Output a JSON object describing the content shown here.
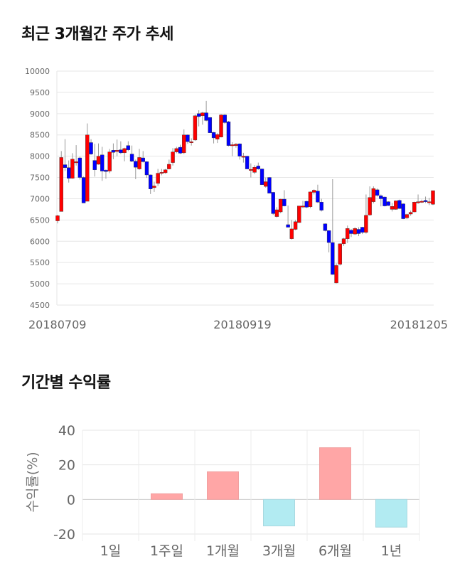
{
  "section1": {
    "title": "최근 3개월간 주가 추세"
  },
  "section2": {
    "title": "기간별 수익률"
  },
  "chart_data": [
    {
      "type": "candlestick",
      "ylim": [
        4500,
        10000
      ],
      "yticks": [
        10000,
        9500,
        9000,
        8500,
        8000,
        7500,
        7000,
        6500,
        6000,
        5500,
        5000,
        4500
      ],
      "xtick_labels": [
        "20180709",
        "20180919",
        "20181205"
      ],
      "grid": true,
      "colors": {
        "up": "#ff0000",
        "down": "#0000ff",
        "wick": "#999999"
      },
      "candles_ohlc": [
        [
          6480,
          6620,
          6420,
          6600
        ],
        [
          6700,
          8120,
          6700,
          7970
        ],
        [
          7800,
          8400,
          7650,
          7730
        ],
        [
          7730,
          7900,
          7380,
          7480
        ],
        [
          7480,
          8070,
          7470,
          7930
        ],
        [
          7870,
          8260,
          7780,
          7870
        ],
        [
          7960,
          7990,
          7450,
          7500
        ],
        [
          7500,
          7520,
          6900,
          6900
        ],
        [
          6940,
          8770,
          6940,
          8500
        ],
        [
          8320,
          8400,
          8030,
          8050
        ],
        [
          7900,
          8290,
          7520,
          7680
        ],
        [
          7810,
          8300,
          7800,
          8000
        ],
        [
          8030,
          8220,
          7420,
          7650
        ],
        [
          7670,
          7690,
          7470,
          7640
        ],
        [
          7650,
          8170,
          7600,
          8100
        ],
        [
          8140,
          8300,
          7930,
          8090
        ],
        [
          8110,
          8390,
          8000,
          8140
        ],
        [
          8150,
          8350,
          8050,
          8080
        ],
        [
          8080,
          8200,
          7880,
          8180
        ],
        [
          8250,
          8350,
          8120,
          8150
        ],
        [
          8050,
          8250,
          7860,
          7880
        ],
        [
          7880,
          7920,
          7460,
          7740
        ],
        [
          7700,
          8170,
          7680,
          7970
        ],
        [
          7960,
          8120,
          7850,
          7870
        ],
        [
          7870,
          7880,
          7490,
          7560
        ],
        [
          7560,
          7570,
          7110,
          7230
        ],
        [
          7260,
          7400,
          7160,
          7300
        ],
        [
          7360,
          7700,
          7300,
          7600
        ],
        [
          7620,
          7700,
          7550,
          7620
        ],
        [
          7610,
          7700,
          7590,
          7680
        ],
        [
          7700,
          7920,
          7690,
          7810
        ],
        [
          7850,
          8190,
          7780,
          8100
        ],
        [
          8100,
          8220,
          8070,
          8180
        ],
        [
          8210,
          8270,
          8050,
          8070
        ],
        [
          8080,
          8630,
          8050,
          8500
        ],
        [
          8500,
          8510,
          8290,
          8340
        ],
        [
          8340,
          8420,
          8250,
          8340
        ],
        [
          8380,
          8980,
          8360,
          8950
        ],
        [
          9000,
          9080,
          8700,
          8930
        ],
        [
          8950,
          9040,
          8740,
          9020
        ],
        [
          9020,
          9300,
          8820,
          8840
        ],
        [
          8910,
          8920,
          8550,
          8550
        ],
        [
          8560,
          8570,
          8300,
          8430
        ],
        [
          8400,
          8540,
          8310,
          8510
        ],
        [
          8450,
          8990,
          8440,
          8970
        ],
        [
          8970,
          8990,
          8760,
          8790
        ],
        [
          8810,
          8830,
          8230,
          8250
        ],
        [
          8270,
          8330,
          8000,
          8270
        ],
        [
          8250,
          8310,
          8200,
          8280
        ],
        [
          8290,
          8300,
          7920,
          8000
        ],
        [
          8000,
          8080,
          7850,
          8000
        ],
        [
          8000,
          8010,
          7700,
          7700
        ],
        [
          7690,
          7830,
          7500,
          7690
        ],
        [
          7620,
          7790,
          7580,
          7740
        ],
        [
          7770,
          7850,
          7680,
          7700
        ],
        [
          7700,
          7710,
          7330,
          7330
        ],
        [
          7290,
          7500,
          7260,
          7400
        ],
        [
          7500,
          7510,
          7130,
          7130
        ],
        [
          7150,
          7160,
          6620,
          6650
        ],
        [
          6580,
          6800,
          6560,
          6740
        ],
        [
          6690,
          7000,
          6660,
          6990
        ],
        [
          6990,
          7200,
          6820,
          6830
        ],
        [
          6390,
          6840,
          6330,
          6330
        ],
        [
          6060,
          6500,
          6040,
          6290
        ],
        [
          6280,
          6500,
          6260,
          6460
        ],
        [
          6440,
          6830,
          6430,
          6830
        ],
        [
          6830,
          6950,
          6780,
          6830
        ],
        [
          6940,
          6950,
          6780,
          6800
        ],
        [
          6810,
          7170,
          6780,
          7160
        ],
        [
          7150,
          7220,
          7100,
          7200
        ],
        [
          7180,
          7330,
          6900,
          6920
        ],
        [
          6920,
          7000,
          6700,
          6730
        ],
        [
          6410,
          6420,
          6230,
          6250
        ],
        [
          6250,
          6260,
          5740,
          5970
        ],
        [
          5970,
          7460,
          5210,
          5220
        ],
        [
          5020,
          5480,
          5010,
          5430
        ],
        [
          5460,
          5950,
          5430,
          5940
        ],
        [
          5940,
          6080,
          5890,
          6060
        ],
        [
          6060,
          6370,
          5960,
          6300
        ],
        [
          6260,
          6290,
          6100,
          6180
        ],
        [
          6170,
          6330,
          6150,
          6300
        ],
        [
          6280,
          6330,
          6120,
          6180
        ],
        [
          6330,
          6340,
          6170,
          6210
        ],
        [
          6210,
          7100,
          6180,
          6610
        ],
        [
          6620,
          7290,
          6600,
          7030
        ],
        [
          6930,
          7290,
          6890,
          7240
        ],
        [
          7210,
          7240,
          7050,
          7080
        ],
        [
          7070,
          7100,
          6820,
          7000
        ],
        [
          7040,
          7050,
          6820,
          6830
        ],
        [
          6930,
          6940,
          6830,
          6840
        ],
        [
          6750,
          6900,
          6700,
          6820
        ],
        [
          6750,
          6960,
          6740,
          6950
        ],
        [
          6960,
          6980,
          6760,
          6770
        ],
        [
          6880,
          6890,
          6520,
          6530
        ],
        [
          6550,
          6650,
          6520,
          6630
        ],
        [
          6640,
          6720,
          6600,
          6680
        ],
        [
          6690,
          6930,
          6680,
          6920
        ],
        [
          6930,
          7100,
          6880,
          6930
        ],
        [
          6940,
          6980,
          6900,
          6940
        ],
        [
          6960,
          7050,
          6900,
          6930
        ],
        [
          6930,
          7020,
          6850,
          6930
        ],
        [
          6870,
          7190,
          6850,
          7190
        ]
      ]
    },
    {
      "type": "bar",
      "categories": [
        "1일",
        "1주일",
        "1개월",
        "3개월",
        "6개월",
        "1년"
      ],
      "values": [
        0,
        3.3,
        16.0,
        -15.3,
        29.9,
        -16.0
      ],
      "ylabel": "수익률(%)",
      "ylim": [
        -20,
        40
      ],
      "yticks": [
        40,
        20,
        0,
        -20
      ],
      "grid": true,
      "colors": {
        "positive": "#ffa6a6",
        "negative": "#b2ebf2"
      }
    }
  ]
}
